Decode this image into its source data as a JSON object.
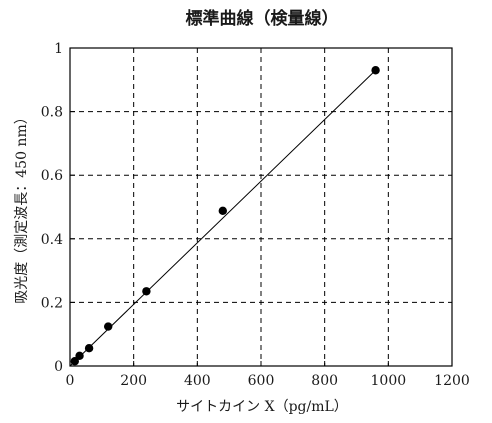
{
  "chart_data": {
    "type": "scatter",
    "title": "標準曲線（検量線）",
    "xlabel": "サイトカイン X（pg/mL）",
    "ylabel": "吸光度（測定波長：450 nm）",
    "xlim": [
      0,
      1200
    ],
    "ylim": [
      0,
      1
    ],
    "xticks": [
      0,
      200,
      400,
      600,
      800,
      1000,
      1200
    ],
    "yticks": [
      0,
      0.2,
      0.4,
      0.6,
      0.8,
      1
    ],
    "x_tick_labels": [
      "0",
      "200",
      "400",
      "600",
      "800",
      "1000",
      "1200"
    ],
    "y_tick_labels": [
      "0",
      "0.2",
      "0.4",
      "0.6",
      "0.8",
      "1"
    ],
    "grid": true,
    "points": [
      {
        "x": 15,
        "y": 0.015
      },
      {
        "x": 30,
        "y": 0.032
      },
      {
        "x": 60,
        "y": 0.056
      },
      {
        "x": 120,
        "y": 0.124
      },
      {
        "x": 240,
        "y": 0.235
      },
      {
        "x": 480,
        "y": 0.488
      },
      {
        "x": 960,
        "y": 0.93
      }
    ],
    "fit_line": {
      "x": [
        0,
        960
      ],
      "y": [
        0.0,
        0.93
      ]
    }
  }
}
